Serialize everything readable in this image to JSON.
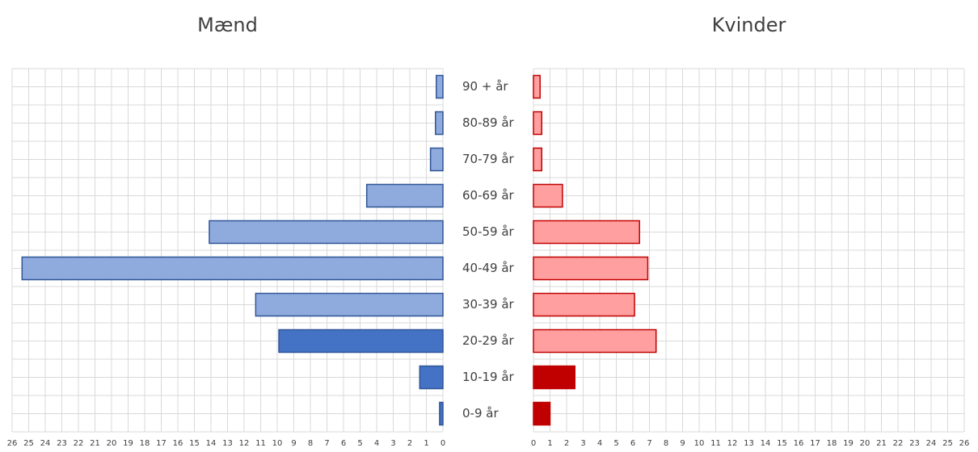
{
  "chart_data": [
    {
      "type": "barh",
      "title": "Mænd",
      "categories": [
        "0-9 år",
        "10-19 år",
        "20-29 år",
        "30-39 år",
        "40-49 år",
        "50-59 år",
        "60-69 år",
        "70-79 år",
        "80-89 år",
        "90 + år"
      ],
      "values": [
        0.2,
        1.4,
        9.9,
        11.3,
        25.4,
        14.1,
        4.6,
        0.75,
        0.45,
        0.4
      ],
      "colors": [
        "#4472c4",
        "#4472c4",
        "#4472c4",
        "#8faadc",
        "#8faadc",
        "#8faadc",
        "#8faadc",
        "#8faadc",
        "#8faadc",
        "#8faadc"
      ],
      "edgecolor": "#2f5597",
      "xlim": [
        26,
        0
      ],
      "xticks": [
        26,
        25,
        24,
        23,
        22,
        21,
        20,
        19,
        18,
        17,
        16,
        15,
        14,
        13,
        12,
        11,
        10,
        9,
        8,
        7,
        6,
        5,
        4,
        3,
        2,
        1,
        0
      ],
      "grid": true
    },
    {
      "type": "barh",
      "title": "Kvinder",
      "values": [
        1.0,
        2.5,
        7.4,
        6.1,
        6.9,
        6.4,
        1.75,
        0.5,
        0.5,
        0.4
      ],
      "colors": [
        "#c00000",
        "#c00000",
        "#ff9f9f",
        "#ff9f9f",
        "#ff9f9f",
        "#ff9f9f",
        "#ff9f9f",
        "#ff9f9f",
        "#ff9f9f",
        "#ff9f9f"
      ],
      "edgecolor": "#c00000",
      "xlim": [
        0,
        26
      ],
      "xticks": [
        0,
        1,
        2,
        3,
        4,
        5,
        6,
        7,
        8,
        9,
        10,
        11,
        12,
        13,
        14,
        15,
        16,
        17,
        18,
        19,
        20,
        21,
        22,
        23,
        24,
        25,
        26
      ],
      "grid": true
    }
  ]
}
